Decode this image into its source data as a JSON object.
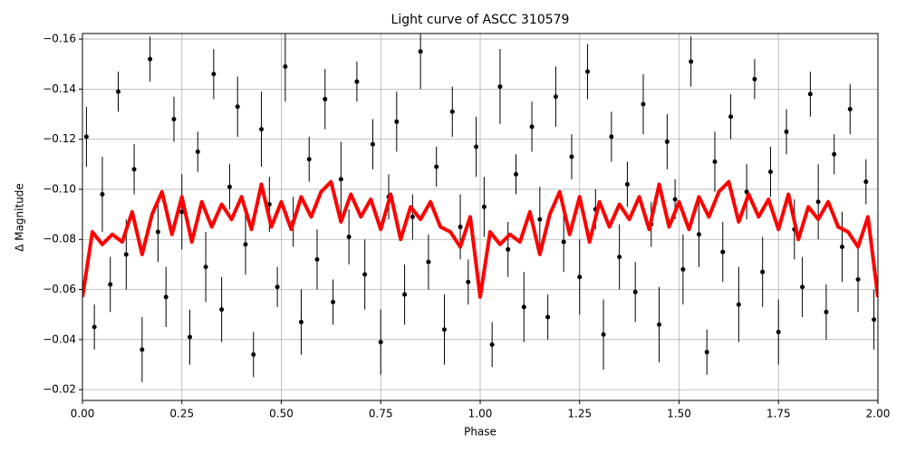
{
  "chart_data": {
    "type": "scatter",
    "title": "Light curve of ASCC 310579",
    "x_label": "Phase",
    "y_label": "Δ Magnitude",
    "xlim": [
      0,
      2
    ],
    "ylim": [
      -0.0157,
      -0.1622
    ],
    "xticks": [
      {
        "value": 0,
        "label": "0.00"
      },
      {
        "value": 0.25,
        "label": "0.25"
      },
      {
        "value": 0.5,
        "label": "0.50"
      },
      {
        "value": 0.75,
        "label": "0.75"
      },
      {
        "value": 1,
        "label": "1.00"
      },
      {
        "value": 1.25,
        "label": "1.25"
      },
      {
        "value": 1.5,
        "label": "1.50"
      },
      {
        "value": 1.75,
        "label": "1.75"
      },
      {
        "value": 2,
        "label": "2.00"
      }
    ],
    "yticks": [
      {
        "value": -0.16,
        "label": "−0.16"
      },
      {
        "value": -0.14,
        "label": "−0.14"
      },
      {
        "value": -0.12,
        "label": "−0.12"
      },
      {
        "value": -0.1,
        "label": "−0.10"
      },
      {
        "value": -0.08,
        "label": "−0.08"
      },
      {
        "value": -0.06,
        "label": "−0.06"
      },
      {
        "value": -0.04,
        "label": "−0.04"
      },
      {
        "value": -0.02,
        "label": "−0.02"
      }
    ],
    "grid": true,
    "points": {
      "color": "#000000",
      "x": [
        0.01,
        0.03,
        0.05,
        0.07,
        0.09,
        0.11,
        0.13,
        0.15,
        0.17,
        0.19,
        0.21,
        0.23,
        0.25,
        0.27,
        0.29,
        0.31,
        0.33,
        0.35,
        0.37,
        0.39,
        0.41,
        0.43,
        0.45,
        0.47,
        0.49,
        0.51,
        0.53,
        0.55,
        0.57,
        0.59,
        0.61,
        0.63,
        0.65,
        0.67,
        0.69,
        0.71,
        0.73,
        0.75,
        0.77,
        0.79,
        0.81,
        0.83,
        0.85,
        0.87,
        0.89,
        0.91,
        0.93,
        0.95,
        0.97,
        0.99,
        1.01,
        1.03,
        1.05,
        1.07,
        1.09,
        1.11,
        1.13,
        1.15,
        1.17,
        1.19,
        1.21,
        1.23,
        1.25,
        1.27,
        1.29,
        1.31,
        1.33,
        1.35,
        1.37,
        1.39,
        1.41,
        1.43,
        1.45,
        1.47,
        1.49,
        1.51,
        1.53,
        1.55,
        1.57,
        1.59,
        1.61,
        1.63,
        1.65,
        1.67,
        1.69,
        1.71,
        1.73,
        1.75,
        1.77,
        1.79,
        1.81,
        1.83,
        1.85,
        1.87,
        1.89,
        1.91,
        1.93,
        1.95,
        1.97,
        1.99
      ],
      "values": [
        -0.121,
        -0.045,
        -0.098,
        -0.062,
        -0.139,
        -0.074,
        -0.108,
        -0.036,
        -0.152,
        -0.083,
        -0.057,
        -0.128,
        -0.091,
        -0.041,
        -0.115,
        -0.069,
        -0.146,
        -0.052,
        -0.101,
        -0.133,
        -0.078,
        -0.034,
        -0.124,
        -0.094,
        -0.061,
        -0.149,
        -0.087,
        -0.047,
        -0.112,
        -0.072,
        -0.136,
        -0.055,
        -0.104,
        -0.081,
        -0.143,
        -0.066,
        -0.118,
        -0.039,
        -0.097,
        -0.127,
        -0.058,
        -0.089,
        -0.155,
        -0.071,
        -0.109,
        -0.044,
        -0.131,
        -0.085,
        -0.063,
        -0.117,
        -0.093,
        -0.038,
        -0.141,
        -0.076,
        -0.106,
        -0.053,
        -0.125,
        -0.088,
        -0.049,
        -0.137,
        -0.079,
        -0.113,
        -0.065,
        -0.147,
        -0.092,
        -0.042,
        -0.121,
        -0.073,
        -0.102,
        -0.059,
        -0.134,
        -0.086,
        -0.046,
        -0.119,
        -0.096,
        -0.068,
        -0.151,
        -0.082,
        -0.035,
        -0.111,
        -0.075,
        -0.129,
        -0.054,
        -0.099,
        -0.144,
        -0.067,
        -0.107,
        -0.043,
        -0.123,
        -0.084,
        -0.061,
        -0.138,
        -0.095,
        -0.051,
        -0.114,
        -0.077,
        -0.132,
        -0.064,
        -0.103,
        -0.048
      ],
      "errors": [
        0.012,
        0.009,
        0.015,
        0.011,
        0.008,
        0.014,
        0.01,
        0.013,
        0.009,
        0.012,
        0.012,
        0.009,
        0.015,
        0.011,
        0.008,
        0.014,
        0.01,
        0.013,
        0.009,
        0.012,
        0.012,
        0.009,
        0.015,
        0.011,
        0.008,
        0.014,
        0.01,
        0.013,
        0.009,
        0.012,
        0.012,
        0.009,
        0.015,
        0.011,
        0.008,
        0.014,
        0.01,
        0.013,
        0.009,
        0.012,
        0.012,
        0.009,
        0.015,
        0.011,
        0.008,
        0.014,
        0.01,
        0.013,
        0.009,
        0.012,
        0.012,
        0.009,
        0.015,
        0.011,
        0.008,
        0.014,
        0.01,
        0.013,
        0.009,
        0.012,
        0.012,
        0.009,
        0.015,
        0.011,
        0.008,
        0.014,
        0.01,
        0.013,
        0.009,
        0.012,
        0.012,
        0.009,
        0.015,
        0.011,
        0.008,
        0.014,
        0.01,
        0.013,
        0.009,
        0.012,
        0.012,
        0.009,
        0.015,
        0.011,
        0.008,
        0.014,
        0.01,
        0.013,
        0.009,
        0.012,
        0.012,
        0.009,
        0.015,
        0.011,
        0.008,
        0.014,
        0.01,
        0.013,
        0.009,
        0.012
      ]
    },
    "line": {
      "color": "#ff0000",
      "x": [
        0,
        0.025,
        0.05,
        0.075,
        0.1,
        0.125,
        0.15,
        0.175,
        0.2,
        0.225,
        0.25,
        0.275,
        0.3,
        0.325,
        0.35,
        0.375,
        0.4,
        0.425,
        0.45,
        0.475,
        0.5,
        0.525,
        0.55,
        0.575,
        0.6,
        0.625,
        0.65,
        0.675,
        0.7,
        0.725,
        0.75,
        0.775,
        0.8,
        0.825,
        0.85,
        0.875,
        0.9,
        0.925,
        0.95,
        0.975,
        1,
        1.025,
        1.05,
        1.075,
        1.1,
        1.125,
        1.15,
        1.175,
        1.2,
        1.225,
        1.25,
        1.275,
        1.3,
        1.325,
        1.35,
        1.375,
        1.4,
        1.425,
        1.45,
        1.475,
        1.5,
        1.525,
        1.55,
        1.575,
        1.6,
        1.625,
        1.65,
        1.675,
        1.7,
        1.725,
        1.75,
        1.775,
        1.8,
        1.825,
        1.85,
        1.875,
        1.9,
        1.925,
        1.95,
        1.975,
        2
      ],
      "values": [
        -0.057,
        -0.083,
        -0.078,
        -0.082,
        -0.079,
        -0.091,
        -0.074,
        -0.09,
        -0.099,
        -0.082,
        -0.097,
        -0.079,
        -0.095,
        -0.085,
        -0.094,
        -0.088,
        -0.097,
        -0.084,
        -0.102,
        -0.085,
        -0.095,
        -0.084,
        -0.097,
        -0.089,
        -0.099,
        -0.103,
        -0.087,
        -0.098,
        -0.089,
        -0.096,
        -0.084,
        -0.098,
        -0.08,
        -0.093,
        -0.088,
        -0.095,
        -0.085,
        -0.083,
        -0.077,
        -0.089,
        -0.057,
        -0.083,
        -0.078,
        -0.082,
        -0.079,
        -0.091,
        -0.074,
        -0.09,
        -0.099,
        -0.082,
        -0.097,
        -0.079,
        -0.095,
        -0.085,
        -0.094,
        -0.088,
        -0.097,
        -0.084,
        -0.102,
        -0.085,
        -0.095,
        -0.084,
        -0.097,
        -0.089,
        -0.099,
        -0.103,
        -0.087,
        -0.098,
        -0.089,
        -0.096,
        -0.084,
        -0.098,
        -0.08,
        -0.093,
        -0.088,
        -0.095,
        -0.085,
        -0.083,
        -0.077,
        -0.089,
        -0.057
      ]
    }
  }
}
